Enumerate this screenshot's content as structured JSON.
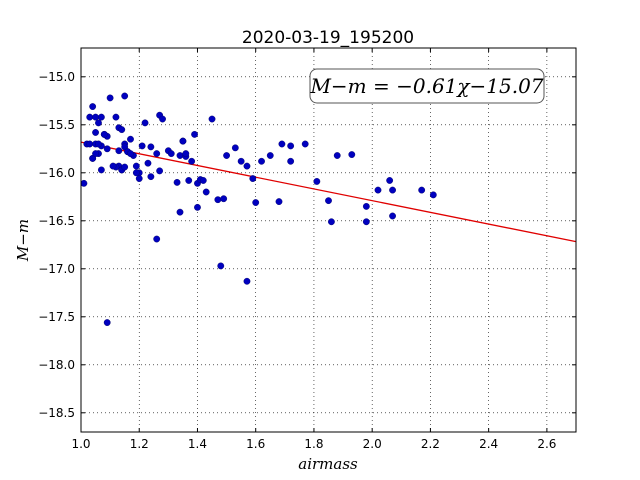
{
  "chart_data": {
    "type": "scatter",
    "title": "2020-03-19_195200",
    "xlabel": "airmass",
    "ylabel": "M−m",
    "xlim": [
      1.0,
      2.7
    ],
    "ylim": [
      -18.7,
      -14.7
    ],
    "y_inverted": true,
    "grid": true,
    "x_ticks": [
      1.0,
      1.2,
      1.4,
      1.6,
      1.8,
      2.0,
      2.2,
      2.4,
      2.6
    ],
    "x_tick_labels": [
      "1.0",
      "1.2",
      "1.4",
      "1.6",
      "1.8",
      "2.0",
      "2.2",
      "2.4",
      "2.6"
    ],
    "y_ticks": [
      -15.0,
      -15.5,
      -16.0,
      -16.5,
      -17.0,
      -17.5,
      -18.0,
      -18.5
    ],
    "y_tick_labels": [
      "−15.0",
      "−15.5",
      "−16.0",
      "−16.5",
      "−17.0",
      "−17.5",
      "−18.0",
      "−18.5"
    ],
    "annotation": "M−m = −0.61χ−15.07",
    "annotation_placement": "top-right",
    "point_color": "#0000bf",
    "fit_color": "#e00000",
    "fit": {
      "slope": -0.61,
      "intercept": -15.07
    },
    "points": {
      "x": [
        1.01,
        1.02,
        1.03,
        1.04,
        1.05,
        1.05,
        1.06,
        1.07,
        1.03,
        1.04,
        1.05,
        1.06,
        1.07,
        1.08,
        1.09,
        1.04,
        1.05,
        1.06,
        1.07,
        1.08,
        1.09,
        1.1,
        1.12,
        1.13,
        1.14,
        1.15,
        1.16,
        1.17,
        1.18,
        1.19,
        1.2,
        1.13,
        1.14,
        1.15,
        1.16,
        1.17,
        1.12,
        1.13,
        1.14,
        1.15,
        1.19,
        1.2,
        1.21,
        1.23,
        1.24,
        1.22,
        1.24,
        1.26,
        1.27,
        1.27,
        1.28,
        1.3,
        1.31,
        1.33,
        1.34,
        1.35,
        1.36,
        1.37,
        1.38,
        1.35,
        1.36,
        1.39,
        1.4,
        1.41,
        1.42,
        1.43,
        1.45,
        1.47,
        1.49,
        1.5,
        1.53,
        1.55,
        1.57,
        1.59,
        1.6,
        1.62,
        1.65,
        1.68,
        1.69,
        1.72,
        1.72,
        1.77,
        1.81,
        1.85,
        1.86,
        1.88,
        1.93,
        1.98,
        1.98,
        2.02,
        2.06,
        2.07,
        2.07,
        2.17,
        2.21,
        1.09,
        1.11,
        1.15,
        1.26,
        1.34,
        1.4,
        1.48,
        1.57
      ],
      "y": [
        -16.11,
        -15.7,
        -15.42,
        -15.31,
        -15.42,
        -15.58,
        -15.48,
        -15.42,
        -15.7,
        -15.85,
        -15.7,
        -15.8,
        -15.72,
        -15.6,
        -15.62,
        -15.85,
        -15.8,
        -15.7,
        -15.97,
        -15.6,
        -15.75,
        -15.22,
        -15.42,
        -15.53,
        -15.55,
        -15.7,
        -15.78,
        -15.65,
        -15.82,
        -15.93,
        -16.0,
        -15.93,
        -15.97,
        -15.73,
        -15.78,
        -15.8,
        -15.94,
        -15.77,
        -15.97,
        -15.2,
        -16.0,
        -16.06,
        -15.72,
        -15.9,
        -15.73,
        -15.48,
        -16.04,
        -15.8,
        -15.4,
        -15.98,
        -15.44,
        -15.77,
        -15.8,
        -16.1,
        -15.82,
        -15.67,
        -15.83,
        -16.08,
        -15.88,
        -15.67,
        -15.8,
        -15.6,
        -16.11,
        -16.07,
        -16.08,
        -16.2,
        -15.44,
        -16.28,
        -16.27,
        -15.82,
        -15.74,
        -15.88,
        -15.93,
        -16.06,
        -16.31,
        -15.88,
        -15.82,
        -16.3,
        -15.7,
        -15.88,
        -15.72,
        -15.7,
        -16.09,
        -16.29,
        -16.51,
        -15.82,
        -15.81,
        -16.35,
        -16.51,
        -16.18,
        -16.08,
        -16.18,
        -16.45,
        -16.18,
        -16.23,
        -17.56,
        -15.93,
        -15.94,
        -16.69,
        -16.41,
        -16.36,
        -16.97,
        -17.13
      ]
    }
  }
}
